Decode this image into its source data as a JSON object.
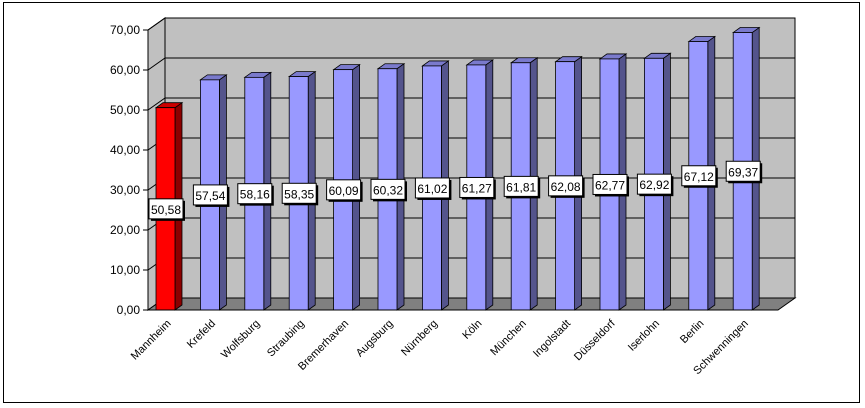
{
  "chart_data": {
    "type": "bar",
    "title": "",
    "xlabel": "",
    "ylabel": "",
    "ylim": [
      0,
      70
    ],
    "yticks": [
      "0,00",
      "10,00",
      "20,00",
      "30,00",
      "40,00",
      "50,00",
      "60,00",
      "70,00"
    ],
    "grid": true,
    "legend": "none",
    "categories": [
      "Mannheim",
      "Krefeld",
      "Wolfsburg",
      "Straubing",
      "Bremerhaven",
      "Augsburg",
      "Nürnberg",
      "Köln",
      "München",
      "Ingolstadt",
      "Düsseldorf",
      "Iserlohn",
      "Berlin",
      "Schwenningen"
    ],
    "values": [
      50.58,
      57.54,
      58.16,
      58.35,
      60.09,
      60.32,
      61.02,
      61.27,
      61.81,
      62.08,
      62.77,
      62.92,
      67.12,
      69.37
    ],
    "data_labels": [
      "50,58",
      "57,54",
      "58,16",
      "58,35",
      "60,09",
      "60,32",
      "61,02",
      "61,27",
      "61,81",
      "62,08",
      "62,77",
      "62,92",
      "67,12",
      "69,37"
    ],
    "colors": {
      "highlight": "#ff0000",
      "bar": "#9999ff",
      "wall": "#c0c0c0",
      "floor": "#808080",
      "grid": "#000000"
    },
    "highlight_index": 0
  }
}
